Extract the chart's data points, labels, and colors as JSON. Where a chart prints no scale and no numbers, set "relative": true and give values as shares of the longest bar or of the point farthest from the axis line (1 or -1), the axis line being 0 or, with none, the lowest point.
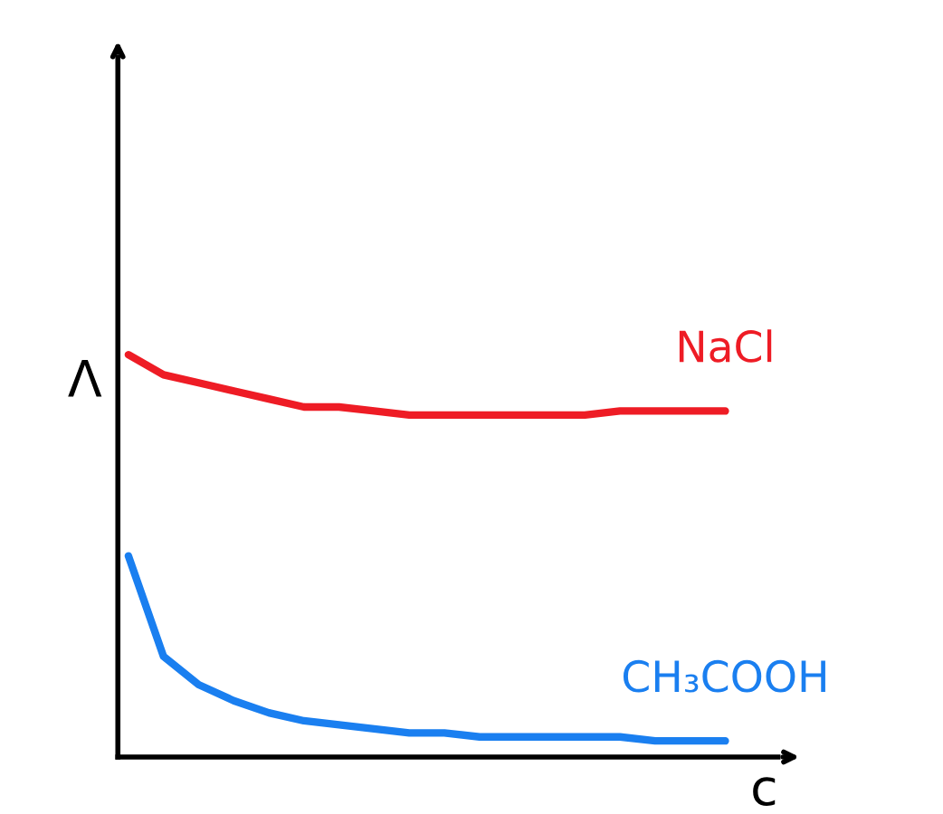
{
  "chart_data": {
    "type": "line",
    "relative": true,
    "xlabel": "c",
    "ylabel": "Λ",
    "categories": [
      null,
      null,
      null,
      null,
      null,
      null,
      null,
      null,
      null,
      null,
      null,
      null,
      null,
      null,
      null,
      null,
      null,
      null
    ],
    "series": [
      {
        "name": "NaCl",
        "color": "#ee1c25",
        "values": [
          1.0,
          0.95,
          0.93,
          0.91,
          0.89,
          0.87,
          0.87,
          0.86,
          0.85,
          0.85,
          0.85,
          0.85,
          0.85,
          0.85,
          0.86,
          0.86,
          0.86,
          0.86
        ]
      },
      {
        "name": "CH₃COOH",
        "color": "#1a7ff0",
        "values": [
          0.5,
          0.25,
          0.18,
          0.14,
          0.11,
          0.09,
          0.08,
          0.07,
          0.06,
          0.06,
          0.05,
          0.05,
          0.05,
          0.05,
          0.05,
          0.04,
          0.04,
          0.04
        ]
      }
    ],
    "legend": false,
    "grid": false,
    "marker": "none",
    "line_style": "solid",
    "tick_labels": false
  }
}
